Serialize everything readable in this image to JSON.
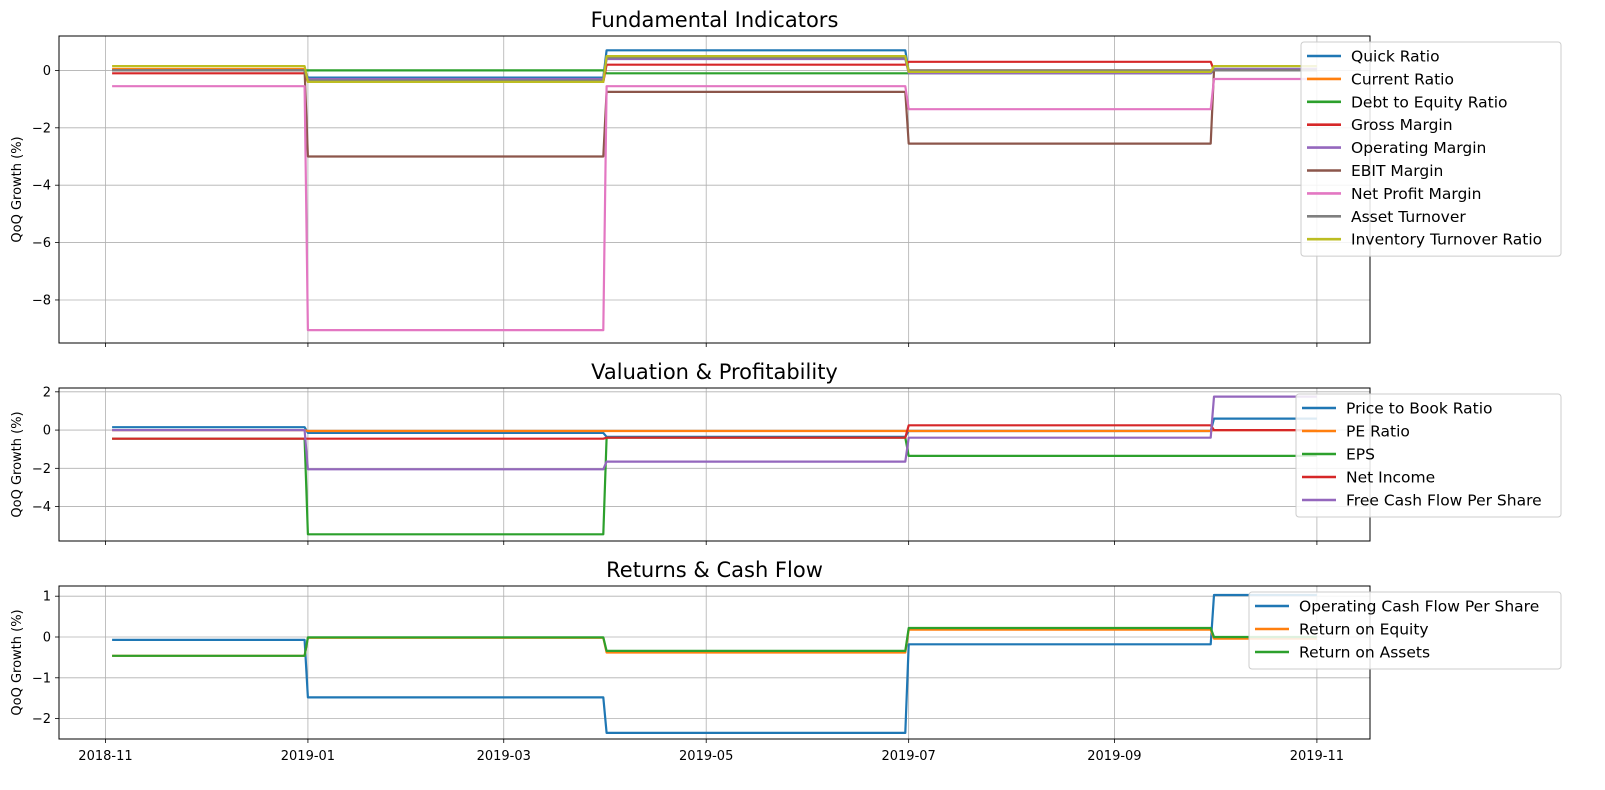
{
  "figure": {
    "x_tick_labels": [
      "2018-11",
      "2019-01",
      "2019-03",
      "2019-05",
      "2019-07",
      "2019-09",
      "2019-11"
    ]
  },
  "chart_data": [
    {
      "type": "line",
      "title": "Fundamental Indicators",
      "ylabel": "QoQ Growth (%)",
      "xlabel": "",
      "x": [
        "2018-11-03",
        "2018-12-31",
        "2019-01-01",
        "2019-03-31",
        "2019-04-01",
        "2019-06-30",
        "2019-07-01",
        "2019-09-30",
        "2019-10-01",
        "2019-11-01"
      ],
      "xlim": [
        "2018-10-18",
        "2019-11-17"
      ],
      "ylim": [
        -9.5,
        1.2
      ],
      "y_ticks": [
        0,
        -2,
        -4,
        -6,
        -8
      ],
      "y_tick_labels": [
        "0",
        "−2",
        "−4",
        "−6",
        "−8"
      ],
      "grid": true,
      "legend_position": "upper right",
      "series": [
        {
          "name": "Quick Ratio",
          "color": "#1f77b4",
          "values": [
            0.0,
            0.0,
            -0.25,
            -0.25,
            0.7,
            0.7,
            -0.05,
            -0.05,
            0.05,
            0.05
          ]
        },
        {
          "name": "Current Ratio",
          "color": "#ff7f0e",
          "values": [
            0.05,
            0.05,
            -0.4,
            -0.4,
            0.45,
            0.45,
            0.0,
            0.0,
            0.0,
            0.0
          ]
        },
        {
          "name": "Debt to Equity Ratio",
          "color": "#2ca02c",
          "values": [
            0.0,
            0.0,
            0.0,
            0.0,
            -0.1,
            -0.1,
            -0.1,
            -0.1,
            0.0,
            0.0
          ]
        },
        {
          "name": "Gross Margin",
          "color": "#d62728",
          "values": [
            -0.1,
            -0.1,
            -0.4,
            -0.4,
            0.2,
            0.2,
            0.3,
            0.3,
            0.0,
            0.0
          ]
        },
        {
          "name": "Operating Margin",
          "color": "#9467bd",
          "values": [
            0.0,
            0.0,
            -0.3,
            -0.3,
            0.4,
            0.4,
            -0.1,
            -0.1,
            0.05,
            0.05
          ]
        },
        {
          "name": "EBIT Margin",
          "color": "#8c564b",
          "values": [
            0.0,
            0.0,
            -3.0,
            -3.0,
            -0.75,
            -0.75,
            -2.55,
            -2.55,
            0.0,
            0.0
          ]
        },
        {
          "name": "Net Profit Margin",
          "color": "#e377c2",
          "values": [
            -0.55,
            -0.55,
            -9.05,
            -9.05,
            -0.55,
            -0.55,
            -1.35,
            -1.35,
            -0.3,
            -0.3
          ]
        },
        {
          "name": "Asset Turnover",
          "color": "#7f7f7f",
          "values": [
            0.0,
            0.0,
            -0.35,
            -0.35,
            0.45,
            0.45,
            0.0,
            0.0,
            0.0,
            0.0
          ]
        },
        {
          "name": "Inventory Turnover Ratio",
          "color": "#bcbd22",
          "values": [
            0.15,
            0.15,
            -0.4,
            -0.4,
            0.5,
            0.5,
            -0.05,
            -0.05,
            0.15,
            0.15
          ]
        }
      ]
    },
    {
      "type": "line",
      "title": "Valuation & Profitability",
      "ylabel": "QoQ Growth (%)",
      "xlabel": "",
      "x": [
        "2018-11-03",
        "2018-12-31",
        "2019-01-01",
        "2019-03-31",
        "2019-04-01",
        "2019-06-30",
        "2019-07-01",
        "2019-09-30",
        "2019-10-01",
        "2019-11-01"
      ],
      "xlim": [
        "2018-10-18",
        "2019-11-17"
      ],
      "ylim": [
        -5.8,
        2.2
      ],
      "y_ticks": [
        2,
        0,
        -2,
        -4
      ],
      "y_tick_labels": [
        "2",
        "0",
        "−2",
        "−4"
      ],
      "grid": true,
      "legend_position": "upper right",
      "series": [
        {
          "name": "Price to Book Ratio",
          "color": "#1f77b4",
          "values": [
            0.15,
            0.15,
            -0.15,
            -0.15,
            -0.35,
            -0.35,
            -0.05,
            -0.05,
            0.6,
            0.6
          ]
        },
        {
          "name": "PE Ratio",
          "color": "#ff7f0e",
          "values": [
            0.0,
            0.0,
            -0.05,
            -0.05,
            -0.05,
            -0.05,
            -0.05,
            -0.05,
            0.0,
            0.0
          ]
        },
        {
          "name": "EPS",
          "color": "#2ca02c",
          "values": [
            -0.45,
            -0.45,
            -5.45,
            -5.45,
            -0.4,
            -0.4,
            -1.35,
            -1.35,
            -1.35,
            -1.35
          ]
        },
        {
          "name": "Net Income",
          "color": "#d62728",
          "values": [
            -0.45,
            -0.45,
            -0.45,
            -0.45,
            -0.4,
            -0.4,
            0.25,
            0.25,
            0.0,
            0.0
          ]
        },
        {
          "name": "Free Cash Flow Per Share",
          "color": "#9467bd",
          "values": [
            0.0,
            0.0,
            -2.05,
            -2.05,
            -1.65,
            -1.65,
            -0.4,
            -0.4,
            1.75,
            1.75
          ]
        }
      ]
    },
    {
      "type": "line",
      "title": "Returns & Cash Flow",
      "ylabel": "QoQ Growth (%)",
      "xlabel": "",
      "x": [
        "2018-11-03",
        "2018-12-31",
        "2019-01-01",
        "2019-03-31",
        "2019-04-01",
        "2019-06-30",
        "2019-07-01",
        "2019-09-30",
        "2019-10-01",
        "2019-11-01"
      ],
      "xlim": [
        "2018-10-18",
        "2019-11-17"
      ],
      "ylim": [
        -2.5,
        1.25
      ],
      "y_ticks": [
        1,
        0,
        -1,
        -2
      ],
      "y_tick_labels": [
        "1",
        "0",
        "−1",
        "−2"
      ],
      "grid": true,
      "legend_position": "upper right",
      "series": [
        {
          "name": "Operating Cash Flow Per Share",
          "color": "#1f77b4",
          "values": [
            -0.07,
            -0.07,
            -1.48,
            -1.48,
            -2.35,
            -2.35,
            -0.18,
            -0.18,
            1.03,
            1.03
          ]
        },
        {
          "name": "Return on Equity",
          "color": "#ff7f0e",
          "values": [
            -0.46,
            -0.46,
            -0.02,
            -0.02,
            -0.38,
            -0.38,
            0.18,
            0.18,
            -0.04,
            -0.04
          ]
        },
        {
          "name": "Return on Assets",
          "color": "#2ca02c",
          "values": [
            -0.46,
            -0.46,
            -0.01,
            -0.01,
            -0.34,
            -0.34,
            0.22,
            0.22,
            0.0,
            0.0
          ]
        }
      ]
    }
  ]
}
